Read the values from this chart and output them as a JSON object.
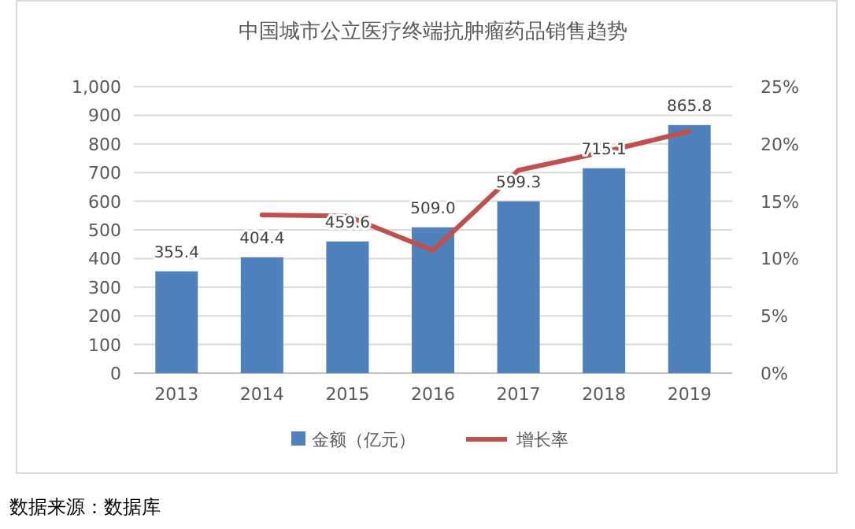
{
  "chart_data": {
    "type": "bar",
    "title": "中国城市公立医疗终端抗肿瘤药品销售趋势",
    "categories": [
      "2013",
      "2014",
      "2015",
      "2016",
      "2017",
      "2018",
      "2019"
    ],
    "series": [
      {
        "name": "金额（亿元）",
        "color": "#4f81bd",
        "values": [
          355.4,
          404.4,
          459.6,
          509.0,
          599.3,
          715.1,
          865.8
        ],
        "value_labels": [
          "355.4",
          "404.4",
          "459.6",
          "509.0",
          "599.3",
          "715.1",
          "865.8"
        ]
      },
      {
        "name": "增长率",
        "type": "line",
        "axis": "y2",
        "color": "#c0504d",
        "values": [
          null,
          13.8,
          13.7,
          10.7,
          17.7,
          19.3,
          21.1
        ],
        "marker": "none",
        "line_style": "solid"
      }
    ],
    "ylim": [
      0,
      1000
    ],
    "yticks": [
      0,
      100,
      200,
      300,
      400,
      500,
      600,
      700,
      800,
      900,
      {
        "value": 1000,
        "label": "1,000"
      }
    ],
    "y2lim": [
      0,
      25
    ],
    "y2ticks": [
      {
        "value": 0,
        "label": "0%"
      },
      {
        "value": 5,
        "label": "5%"
      },
      {
        "value": 10,
        "label": "10%"
      },
      {
        "value": 15,
        "label": "15%"
      },
      {
        "value": 20,
        "label": "20%"
      },
      {
        "value": 25,
        "label": "25%"
      }
    ],
    "grid": "y",
    "legend": "bottom",
    "annotations": [
      "数据来源：数据库"
    ]
  }
}
